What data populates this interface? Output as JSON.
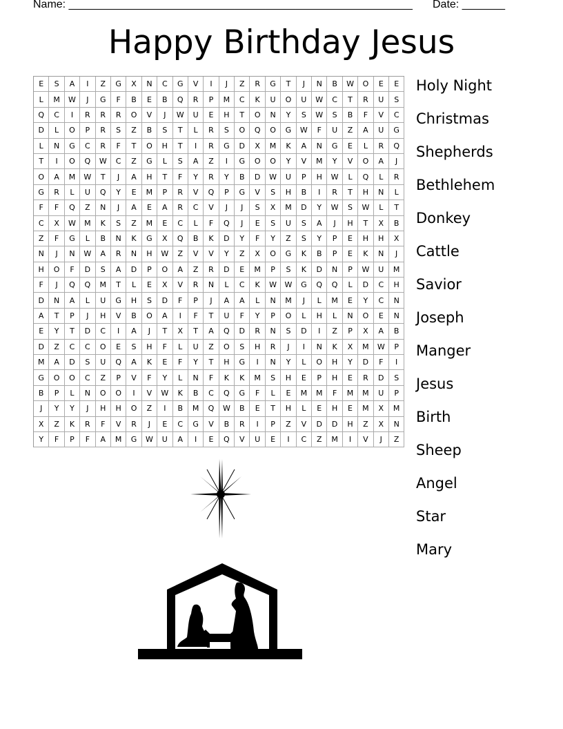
{
  "header": {
    "name_label": "Name: ________________________________________________________",
    "date_label": "Date: _______"
  },
  "title": "Happy Birthday Jesus",
  "grid": [
    "ESAIZGXNCGVIJZRGTJNBWOEE",
    "LMWJGFBEBQRPMCKUOUWCTRUS",
    "QCIRRROVJWUEHTONYSWSBFVC",
    "DLOPRSZBSTLRSOQOGWFUZAUG",
    "LNGCRFTOHTIRGDXMKANGELRQ",
    "TIOQWCZGLSAZIGOOYVMYVOAJ",
    "OAMWTJAHTFYRYBDWUPHWLQLR",
    "GRLUQYEMPRVQPGVSHBIRTHNL",
    "FFQZNJAEARCVJJSXMDYWSWLT",
    "CXWMKSZMECLFQJESUSAJHTXB",
    "ZFGLBNKGXQBKDYFYZSYPEHHX",
    "NJNWARNHWZVVYZXOGKBPEKNJ",
    "HOFDSADPOAZRDEMPSKDNPWUM",
    "FJQQMTLEXVRNLCKWWGQQLDCH",
    "DNALUGHSDFPJAALNMJLMEYCN",
    "ATPJHVBOAIFTUFYPOLHLNOEN",
    "EYTDCIAJTXTAQDRNSDIZPXAB",
    "DZCCOESHFLUZOSHRJINKXMWP",
    "MADSUQAKEFYTHGINYLOHYDFI",
    "GOOCZPVFYLNFKKMSHEPHERDS",
    "BPLNOOIVWKBCQGFLEMMFMMUP",
    "JYYJHHOZIBMQWBETHLEHEMXM",
    "XZKRFVRJECGVBRIPZVDDHZXN",
    "YFPFAMGWUAIEQVUEICZMIVJZ"
  ],
  "words": [
    "Holy Night",
    "Christmas",
    "Shepherds",
    "Bethlehem",
    "Donkey",
    "Cattle",
    "Savior",
    "Joseph",
    "Manger",
    "Jesus",
    "Birth",
    "Sheep",
    "Angel",
    "Star",
    "Mary"
  ],
  "images": {
    "star": "star-of-bethlehem",
    "nativity": "nativity-scene-silhouette"
  }
}
